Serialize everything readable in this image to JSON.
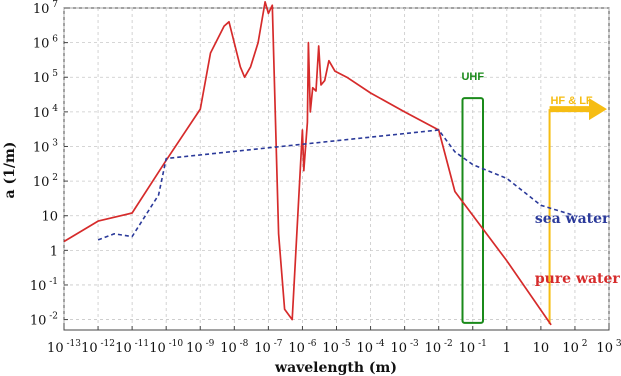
{
  "chart_data": {
    "type": "line",
    "xlabel": "wavelength (m)",
    "ylabel": "a (1/m)",
    "x_scale": "log",
    "y_scale": "log",
    "xlim": [
      1e-13,
      1000
    ],
    "ylim": [
      0.005,
      10000000.0
    ],
    "grid": true,
    "x_ticks": [
      {
        "base": "10",
        "exp": "-13"
      },
      {
        "base": "10",
        "exp": "-12"
      },
      {
        "base": "10",
        "exp": "-11"
      },
      {
        "base": "10",
        "exp": "-10"
      },
      {
        "base": "10",
        "exp": "-9"
      },
      {
        "base": "10",
        "exp": "-8"
      },
      {
        "base": "10",
        "exp": "-7"
      },
      {
        "base": "10",
        "exp": "-6"
      },
      {
        "base": "10",
        "exp": "-5"
      },
      {
        "base": "10",
        "exp": "-4"
      },
      {
        "base": "10",
        "exp": "-3"
      },
      {
        "base": "10",
        "exp": "-2"
      },
      {
        "base": "10",
        "exp": "-1"
      },
      {
        "base": "1",
        "exp": ""
      },
      {
        "base": "10",
        "exp": ""
      },
      {
        "base": "10",
        "exp": "2"
      },
      {
        "base": "10",
        "exp": "3"
      }
    ],
    "y_ticks": [
      {
        "base": "10",
        "exp": "7"
      },
      {
        "base": "10",
        "exp": "6"
      },
      {
        "base": "10",
        "exp": "5"
      },
      {
        "base": "10",
        "exp": "4"
      },
      {
        "base": "10",
        "exp": "3"
      },
      {
        "base": "10",
        "exp": "2"
      },
      {
        "base": "10",
        "exp": ""
      },
      {
        "base": "1",
        "exp": ""
      },
      {
        "base": "10",
        "exp": "-1"
      },
      {
        "base": "10",
        "exp": "-2"
      }
    ],
    "series": [
      {
        "name": "pure water",
        "color": "#d62b2b",
        "style": "solid",
        "points": [
          [
            1e-13,
            1.8
          ],
          [
            1e-12,
            7
          ],
          [
            1e-11,
            12
          ],
          [
            1e-10,
            400
          ],
          [
            1e-09,
            12000
          ],
          [
            2e-09,
            500000
          ],
          [
            5e-09,
            3000000
          ],
          [
            7e-09,
            4000000
          ],
          [
            1.5e-08,
            200000
          ],
          [
            2e-08,
            100000
          ],
          [
            3e-08,
            200000
          ],
          [
            5e-08,
            1000000
          ],
          [
            8e-08,
            15000000
          ],
          [
            1e-07,
            7000000
          ],
          [
            1.3e-07,
            12000000
          ],
          [
            2e-07,
            3
          ],
          [
            3e-07,
            0.02
          ],
          [
            5e-07,
            0.01
          ],
          [
            1e-06,
            3000
          ],
          [
            1.1e-06,
            200
          ],
          [
            1.4e-06,
            5000
          ],
          [
            1.5e-06,
            1000000
          ],
          [
            1.7e-06,
            10000
          ],
          [
            2e-06,
            50000
          ],
          [
            2.5e-06,
            40000
          ],
          [
            3e-06,
            800000
          ],
          [
            3.5e-06,
            60000
          ],
          [
            4.5e-06,
            80000
          ],
          [
            6e-06,
            300000
          ],
          [
            9e-06,
            150000
          ],
          [
            2e-05,
            100000
          ],
          [
            0.0001,
            35000
          ],
          [
            0.001,
            10000
          ],
          [
            0.01,
            3000
          ],
          [
            0.03,
            50
          ],
          [
            1,
            0.5
          ],
          [
            20,
            0.007
          ]
        ]
      },
      {
        "name": "sea water",
        "color": "#2b3a9a",
        "style": "dashed",
        "points": [
          [
            1e-12,
            2
          ],
          [
            3e-12,
            3
          ],
          [
            1e-11,
            2.5
          ],
          [
            6e-11,
            40
          ],
          [
            1e-10,
            450
          ],
          [
            0.01,
            3000
          ],
          [
            0.03,
            700
          ],
          [
            0.1,
            300
          ],
          [
            1,
            120
          ],
          [
            10,
            20
          ],
          [
            100,
            10
          ]
        ]
      }
    ],
    "series_labels": [
      {
        "name": "sea water",
        "color": "#2b3a9a"
      },
      {
        "name": "pure water",
        "color": "#d62b2b"
      }
    ],
    "annotations": [
      {
        "text": "UHF",
        "color": "#1a8a1a",
        "box_x": [
          0.05,
          0.2
        ],
        "box_y": [
          0.008,
          25000
        ]
      },
      {
        "text": "HF & LF",
        "color": "#f6bd13",
        "line_x": 18,
        "arrow_x_to": 1000,
        "arrow_y": 12000
      }
    ]
  }
}
